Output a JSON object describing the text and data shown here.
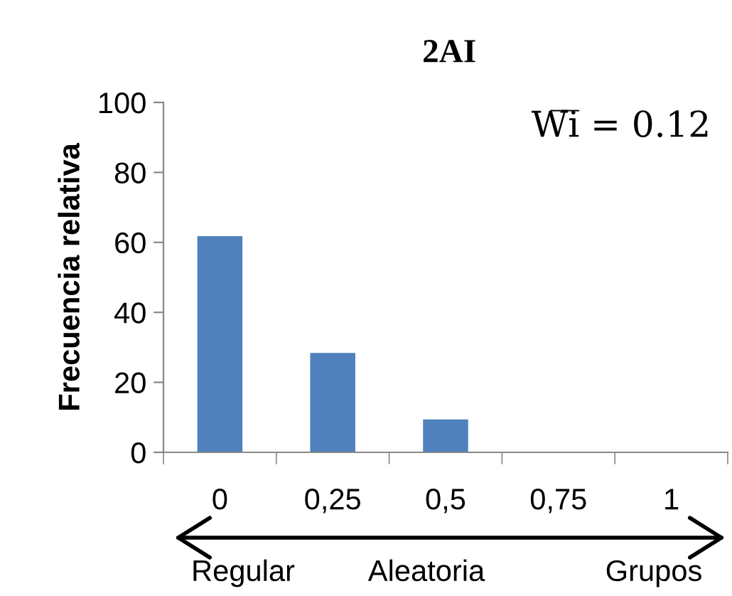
{
  "chart_data": {
    "type": "bar",
    "title": "2AI",
    "ylabel": "Frecuencia relativa",
    "categories": [
      "0",
      "0,25",
      "0,5",
      "0,75",
      "1"
    ],
    "values": [
      61.8,
      28.4,
      9.4,
      0,
      0
    ],
    "color": "#4f81bd",
    "ylim": [
      0,
      100
    ],
    "yticks": [
      0,
      20,
      40,
      60,
      80,
      100
    ],
    "grid": false,
    "annotations": [
      "W̅i̅ = 0.12",
      "Regular",
      "Aleatoria",
      "Grupos"
    ]
  }
}
